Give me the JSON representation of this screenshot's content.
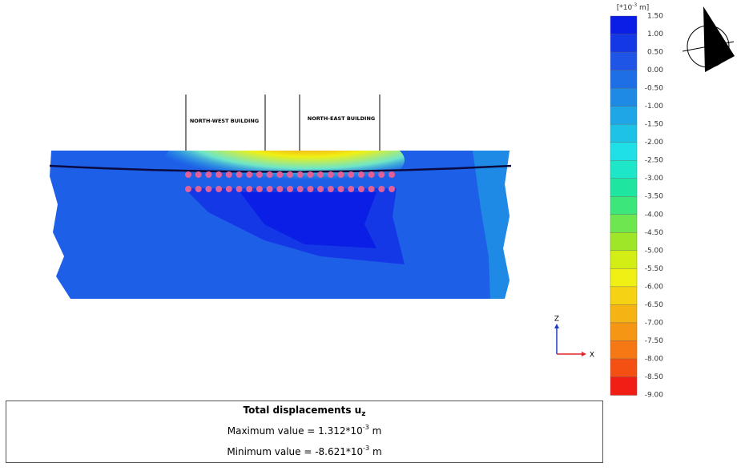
{
  "model": {
    "buildings": [
      "NORTH-WEST BUILDING",
      "NORTH-EAST BUILDING"
    ]
  },
  "legend": {
    "unit_prefix": "[*10",
    "unit_exp": "-3",
    "unit_suffix": " m]",
    "labels": [
      "1.50",
      "1.00",
      "0.50",
      "0.00",
      "-0.50",
      "-1.00",
      "-1.50",
      "-2.00",
      "-2.50",
      "-3.00",
      "-3.50",
      "-4.00",
      "-4.50",
      "-5.00",
      "-5.50",
      "-6.00",
      "-6.50",
      "-7.00",
      "-7.50",
      "-8.00",
      "-8.50",
      "-9.00"
    ],
    "colors": [
      "#0a1ee6",
      "#1438e6",
      "#1e55e6",
      "#1e6ee6",
      "#1e8ae6",
      "#1ea6e6",
      "#1ec2e6",
      "#1ee0e6",
      "#1ee6c8",
      "#1ee6a0",
      "#3ce67a",
      "#6ee650",
      "#a0e628",
      "#d2ee14",
      "#f0f014",
      "#f5d214",
      "#f5b414",
      "#f59614",
      "#f57814",
      "#f55014",
      "#f01e14"
    ]
  },
  "axes": {
    "z": "Z",
    "x": "X"
  },
  "info": {
    "title": "Total displacements u",
    "title_sub": "z",
    "max_prefix": "Maximum value = 1.312*10",
    "max_exp": "-3",
    "max_suffix": " m",
    "min_prefix": "Minimum value = -8.621*10",
    "min_exp": "-3",
    "min_suffix": " m"
  }
}
